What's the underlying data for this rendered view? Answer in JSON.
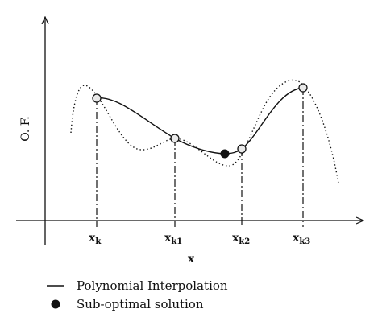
{
  "axes": {
    "y_label": "O. F.",
    "x_label": "x"
  },
  "points": [
    {
      "base": "x",
      "sub": "k",
      "type": "open"
    },
    {
      "base": "x",
      "sub": "k1",
      "type": "open"
    },
    {
      "base": "x",
      "sub": "k2",
      "type": "open"
    },
    {
      "base": "x",
      "sub": "k3",
      "type": "open"
    }
  ],
  "sub_optimal_point": {
    "type": "filled"
  },
  "legend": {
    "line_label": "Polynomial Interpolation",
    "dot_label": "Sub-optimal solution"
  },
  "colors": {
    "ink": "#111111",
    "open_marker_fill": "#e9e9e9"
  }
}
